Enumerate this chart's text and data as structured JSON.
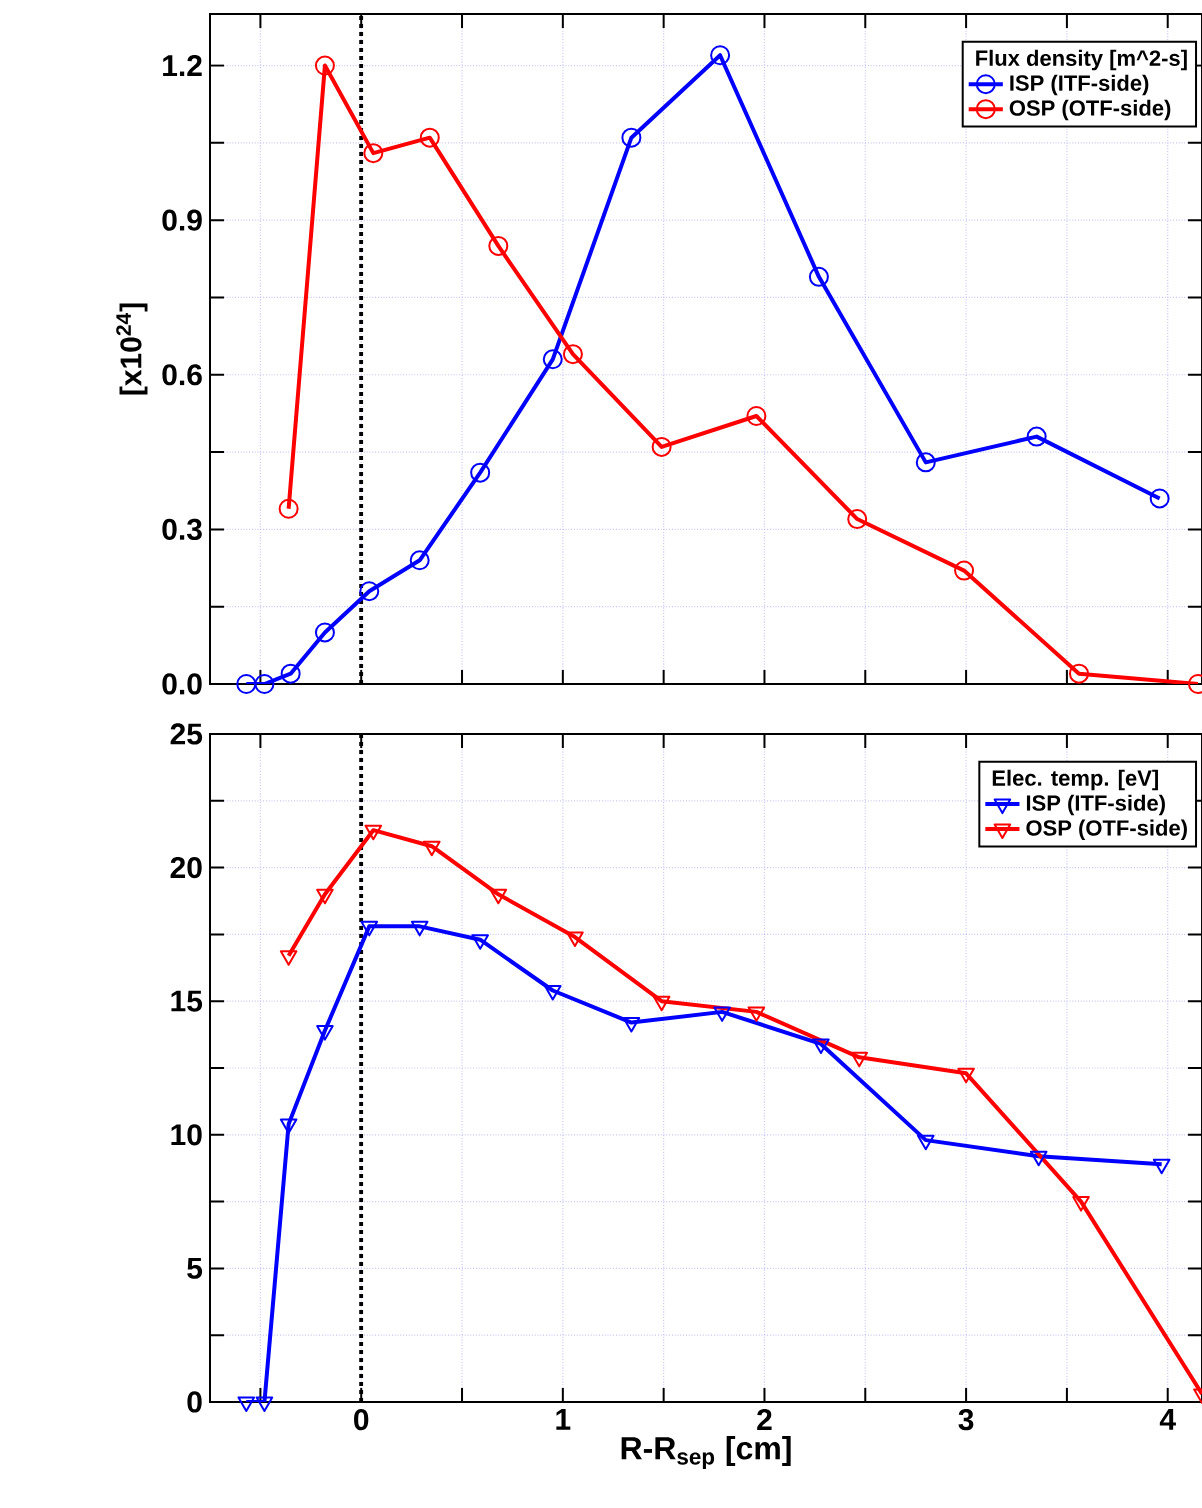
{
  "chart_data": [
    {
      "type": "line",
      "ylabel": "[x10$^{24}$]",
      "legend_title": "Flux density [m^2-s]",
      "marker": "circle",
      "line_style": "solid",
      "grid": true,
      "legend": "top right",
      "tick_labels": "y",
      "xlim": [
        -0.75,
        4.17
      ],
      "ylim": [
        0,
        1.3
      ],
      "xticks": [
        {
          "value": -0.5,
          "label": null
        },
        {
          "value": 0,
          "label": null
        },
        {
          "value": 0.5,
          "label": null
        },
        {
          "value": 1,
          "label": null
        },
        {
          "value": 1.5,
          "label": null
        },
        {
          "value": 2,
          "label": null
        },
        {
          "value": 2.5,
          "label": null
        },
        {
          "value": 3,
          "label": null
        },
        {
          "value": 3.5,
          "label": null
        },
        {
          "value": 4,
          "label": null
        }
      ],
      "yticks": [
        {
          "value": 0,
          "label": "0.0"
        },
        {
          "value": 0.15,
          "label": null
        },
        0.3,
        {
          "value": 0.45,
          "label": null
        },
        0.6,
        {
          "value": 0.75,
          "label": null
        },
        0.9,
        {
          "value": 1.05,
          "label": null
        },
        1.2
      ],
      "ref_lines": [
        {
          "axis": "x",
          "value": 0,
          "color": "#000000",
          "line_style": "dotted"
        }
      ],
      "series": [
        {
          "name": "ISP   (ITF-side)",
          "color": "#0000ff",
          "x": [
            -0.57,
            -0.48,
            -0.35,
            -0.18,
            0.04,
            0.29,
            0.59,
            0.95,
            1.34,
            1.78,
            2.27,
            2.8,
            3.35,
            3.96
          ],
          "values": [
            0,
            0,
            0.02,
            0.1,
            0.18,
            0.24,
            0.41,
            0.63,
            1.06,
            1.22,
            0.79,
            0.43,
            0.48,
            0.36
          ]
        },
        {
          "name": "OSP (OTF-side)",
          "color": "#ff0000",
          "x": [
            -0.36,
            -0.18,
            0.06,
            0.34,
            0.68,
            1.05,
            1.49,
            1.96,
            2.46,
            2.99,
            3.56,
            4.15
          ],
          "values": [
            0.34,
            1.2,
            1.03,
            1.06,
            0.85,
            0.64,
            0.46,
            0.52,
            0.32,
            0.22,
            0.02,
            0
          ]
        }
      ]
    },
    {
      "type": "line",
      "xlabel": "R-R$_{sep}$ [cm]",
      "legend_title": "Elec. temp. [eV]",
      "marker": "triangle",
      "line_style": "solid",
      "grid": true,
      "legend": "top right",
      "xlim": [
        -0.75,
        4.17
      ],
      "ylim": [
        0,
        25
      ],
      "xticks": [
        {
          "value": -0.5,
          "label": null
        },
        0,
        {
          "value": 0.5,
          "label": null
        },
        1,
        {
          "value": 1.5,
          "label": null
        },
        2,
        {
          "value": 2.5,
          "label": null
        },
        3,
        {
          "value": 3.5,
          "label": null
        },
        4
      ],
      "yticks": [
        0,
        {
          "value": 2.5,
          "label": null
        },
        5,
        {
          "value": 7.5,
          "label": null
        },
        10,
        {
          "value": 12.5,
          "label": null
        },
        15,
        {
          "value": 17.5,
          "label": null
        },
        20,
        {
          "value": 22.5,
          "label": null
        },
        25
      ],
      "ref_lines": [
        {
          "axis": "x",
          "value": 0,
          "color": "#000000",
          "line_style": "dotted"
        }
      ],
      "series": [
        {
          "name": "ISP   (ITF-side)",
          "color": "#0000ff",
          "x": [
            -0.57,
            -0.48,
            -0.36,
            -0.18,
            0.04,
            0.29,
            0.59,
            0.95,
            1.34,
            1.79,
            2.28,
            2.8,
            3.36,
            3.97
          ],
          "values": [
            0,
            0,
            10.4,
            13.9,
            17.8,
            17.8,
            17.3,
            15.4,
            14.2,
            14.6,
            13.4,
            9.8,
            9.2,
            8.9
          ]
        },
        {
          "name": "OSP (OTF-side)",
          "color": "#ff0000",
          "x": [
            -0.36,
            -0.18,
            0.06,
            0.35,
            0.68,
            1.06,
            1.49,
            1.96,
            2.47,
            3.0,
            3.57,
            4.17
          ],
          "values": [
            16.7,
            19,
            21.4,
            20.8,
            19,
            17.4,
            15,
            14.6,
            12.9,
            12.3,
            7.5,
            0.3
          ]
        }
      ]
    }
  ]
}
